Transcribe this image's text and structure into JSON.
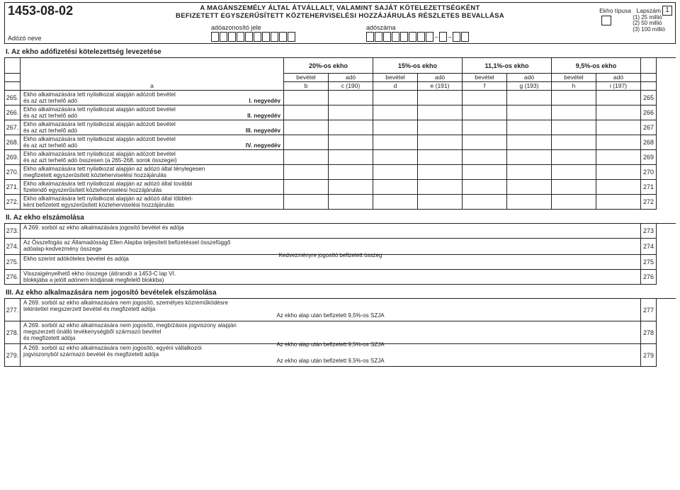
{
  "colors": {
    "ink": "#231f20",
    "paper": "#ffffff"
  },
  "header": {
    "form_code": "1453-08-02",
    "adozo_neve": "Adózó neve",
    "title_line1": "A MAGÁNSZEMÉLY ÁLTAL ÁTVÁLLALT, VALAMINT SAJÁT KÖTELEZETTSÉGKÉNT",
    "title_line2": "BEFIZETETT EGYSZERŰSÍTETT KÖZTEHERVISELÉSI HOZZÁJÁRULÁS RÉSZLETES BEVALLÁSA",
    "adoazonosito_jele": "adóazonosító jele",
    "adoszama": "adószáma",
    "ekho_tipusa": "Ekho típusa",
    "lapszam": "Lapszám",
    "lapszam_value": "1",
    "tipus_opts": [
      "(1) 25 millió",
      "(2) 50 millió",
      "(3) 100 millió"
    ]
  },
  "section1": {
    "title": "I. Az ekho adófizetési kötelezettség levezetése",
    "a_col": "a",
    "groups": [
      "20%-os ekho",
      "15%-os ekho",
      "11,1%-os ekho",
      "9,5%-os ekho"
    ],
    "sub_top": [
      "bevétel",
      "adó",
      "bevétel",
      "adó",
      "bevétel",
      "adó",
      "bevétel",
      "adó"
    ],
    "sub_bot": [
      "b",
      "c (190)",
      "d",
      "e (191)",
      "f",
      "g (193)",
      "h",
      "i (197)"
    ],
    "rows": [
      {
        "n": "265.",
        "text": "Ekho alkalmazására tett nyilatkozat alapján adózott bevétel\nés az azt terhelő adó",
        "quarter": "I. negyedév",
        "end": "265"
      },
      {
        "n": "266.",
        "text": "Ekho alkalmazására tett nyilatkozat alapján adózott bevétel\nés az azt terhelő adó",
        "quarter": "II. negyedév",
        "end": "266"
      },
      {
        "n": "267.",
        "text": "Ekho alkalmazására tett nyilatkozat alapján adózott bevétel\nés az azt terhelő adó",
        "quarter": "III. negyedév",
        "end": "267"
      },
      {
        "n": "268.",
        "text": "Ekho alkalmazására tett nyilatkozat alapján adózott bevétel\nés az azt terhelő adó",
        "quarter": "IV. negyedév",
        "end": "268"
      },
      {
        "n": "269.",
        "text": "Ekho alkalmazására tett nyilatkozat alapján adózott bevétel\nés az azt terhelő adó összesen (a 265-268. sorok összegei)",
        "quarter": "",
        "end": "269"
      },
      {
        "n": "270.",
        "text": "Ekho alkalmazására tett nyilatkozat alapján az adózó által ténylegesen\nmegfizetett egyszerűsített közteherviselési hozzájárulás",
        "quarter": "",
        "end": "270"
      },
      {
        "n": "271.",
        "text": "Ekho alkalmazására tett nyilatkozat alapján az adózó által  további\nfizetendő egyszerűsített közteherviselési hozzájárulás",
        "quarter": "",
        "end": "271"
      },
      {
        "n": "272.",
        "text": "Ekho alkalmazására tett nyilatkozat alapján az adózó által többlet-\nként befizetett egyszerűsített közteherviselési hozzájárulás",
        "quarter": "",
        "end": "272"
      }
    ]
  },
  "section2": {
    "title": "II. Az ekho elszámolása",
    "rows": [
      {
        "n": "273.",
        "text": "A 269. sorból az ekho alkalmazására jogosító bevétel és adója",
        "sub": "",
        "end": "273"
      },
      {
        "n": "274.",
        "text": "Az Összefogás az Államadósság Ellen Alapba teljesített befizetéssel összefüggő\nadóalap-kedvezmény összege",
        "sub": "Kedvezményre jogosító befizetett összeg",
        "end": "274"
      },
      {
        "n": "275.",
        "text": "Ekho szerint adóköteles bevétel és adója",
        "sub": "",
        "end": "275"
      },
      {
        "n": "276.",
        "text": "Visszaigényelhető ekho összege (átírandó a 1453-C lap VI.\nblokkjába a jelölt adónem kódjának megfelelő blokkba)",
        "sub": "",
        "end": "276"
      }
    ]
  },
  "section3": {
    "title": "III. Az ekho alkalmazására nem jogosító bevételek elszámolása",
    "common_sub": "Az ekho alap után befizetett 9,5%-os SZJA",
    "rows": [
      {
        "n": "277.",
        "text": "A 269. sorból az ekho alkalmazására nem jogosító, személyes közreműködésre\ntekintettel megszerzett bevétel és megfizetett adója",
        "end": "277"
      },
      {
        "n": "278.",
        "text": "A 269. sorból az ekho alkalmazására nem jogosító, megbízásos jogviszony alapján\nmegszerzett önálló tevékenységből származó bevétel\nés megfizetett adója",
        "end": "278"
      },
      {
        "n": "279.",
        "text": "A 269. sorból az ekho alkalmazására nem jogosító, egyéni vállalkozói\njogviszonyból származó bevétel és megfizetett adója",
        "end": "279"
      }
    ]
  }
}
